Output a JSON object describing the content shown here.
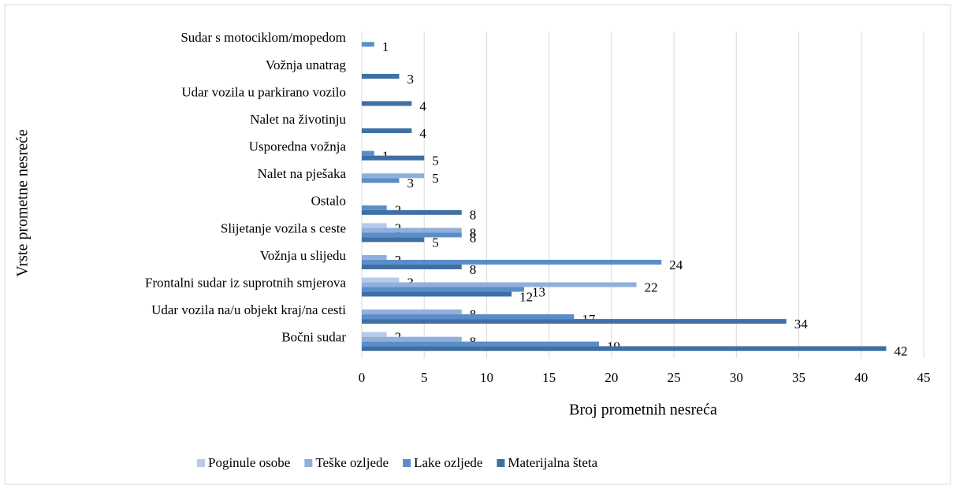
{
  "chart_data": {
    "type": "barh",
    "xlabel": "Broj prometnih nesreća",
    "ylabel": "Vrste prometne nesreće",
    "categories": [
      "Bočni sudar",
      "Udar vozila na/u objekt kraj/na cesti",
      "Frontalni sudar iz suprotnih smjerova",
      "Vožnja u slijedu",
      "Slijetanje vozila s ceste",
      "Ostalo",
      "Nalet na pješaka",
      "Usporedna vožnja",
      "Nalet na životinju",
      "Udar vozila u parkirano vozilo",
      "Vožnja unatrag",
      "Sudar s motociklom/mopedom"
    ],
    "series": [
      {
        "name": "Poginule osobe",
        "color": "#b8cae7",
        "values": [
          2,
          null,
          3,
          null,
          2,
          null,
          null,
          null,
          null,
          null,
          null,
          null
        ]
      },
      {
        "name": "Teške ozljede",
        "color": "#8fb0dc",
        "values": [
          8,
          8,
          22,
          2,
          8,
          null,
          5,
          null,
          null,
          null,
          null,
          null
        ]
      },
      {
        "name": "Lake ozljede",
        "color": "#5b8ec8",
        "values": [
          19,
          17,
          13,
          24,
          8,
          2,
          3,
          1,
          null,
          null,
          null,
          1
        ]
      },
      {
        "name": "Materijalna šteta",
        "color": "#3f6fa3",
        "values": [
          42,
          34,
          12,
          8,
          5,
          8,
          null,
          5,
          4,
          4,
          3,
          null
        ]
      }
    ],
    "xlim": [
      0,
      45
    ],
    "xticks": [
      0,
      5,
      10,
      15,
      20,
      25,
      30,
      35,
      40,
      45
    ],
    "grid": true,
    "legend": "bottom"
  }
}
